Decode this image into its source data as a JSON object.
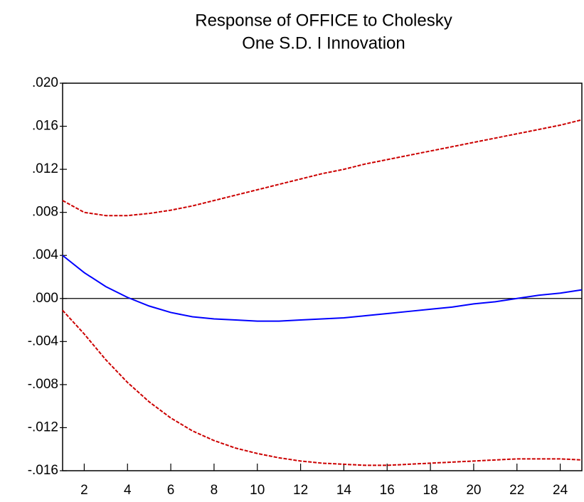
{
  "chart_data": {
    "type": "line",
    "title": [
      "Response of OFFICE to Cholesky",
      "One S.D. I Innovation"
    ],
    "x": [
      1,
      2,
      3,
      4,
      5,
      6,
      7,
      8,
      9,
      10,
      11,
      12,
      13,
      14,
      15,
      16,
      17,
      18,
      19,
      20,
      21,
      22,
      23,
      24,
      25
    ],
    "series": [
      {
        "color": "#0000ff",
        "dashed": false,
        "values": [
          0.004,
          0.0024,
          0.0011,
          0.0001,
          -0.0007,
          -0.0013,
          -0.0017,
          -0.0019,
          -0.002,
          -0.0021,
          -0.0021,
          -0.002,
          -0.0019,
          -0.0018,
          -0.0016,
          -0.0014,
          -0.0012,
          -0.001,
          -0.0008,
          -0.0005,
          -0.0003,
          0.0,
          0.0003,
          0.0005,
          0.0008
        ]
      },
      {
        "color": "#cc0000",
        "dashed": true,
        "values": [
          0.0091,
          0.008,
          0.0077,
          0.0077,
          0.0079,
          0.0082,
          0.0086,
          0.0091,
          0.0096,
          0.0101,
          0.0106,
          0.0111,
          0.0116,
          0.012,
          0.0125,
          0.0129,
          0.0133,
          0.0137,
          0.0141,
          0.0145,
          0.0149,
          0.0153,
          0.0157,
          0.0161,
          0.0166
        ]
      },
      {
        "color": "#cc0000",
        "dashed": true,
        "values": [
          -0.0011,
          -0.0033,
          -0.0057,
          -0.0078,
          -0.0096,
          -0.0111,
          -0.0123,
          -0.0132,
          -0.0139,
          -0.0144,
          -0.0148,
          -0.0151,
          -0.0153,
          -0.0154,
          -0.0155,
          -0.0155,
          -0.0154,
          -0.0153,
          -0.0152,
          -0.0151,
          -0.015,
          -0.0149,
          -0.0149,
          -0.0149,
          -0.015
        ]
      }
    ],
    "xlim": [
      1,
      25
    ],
    "xticks": [
      2,
      4,
      6,
      8,
      10,
      12,
      14,
      16,
      18,
      20,
      22,
      24
    ],
    "ylim": [
      -0.016,
      0.02
    ],
    "yticks": [
      {
        "value": 0.02,
        "label": ".020"
      },
      {
        "value": 0.016,
        "label": ".016"
      },
      {
        "value": 0.012,
        "label": ".012"
      },
      {
        "value": 0.008,
        "label": ".008"
      },
      {
        "value": 0.004,
        "label": ".004"
      },
      {
        "value": 0.0,
        "label": ".000"
      },
      {
        "value": -0.004,
        "label": "-.004"
      },
      {
        "value": -0.008,
        "label": "-.008"
      },
      {
        "value": -0.012,
        "label": "-.012"
      },
      {
        "value": -0.016,
        "label": "-.016"
      }
    ],
    "zero_line": true,
    "grid": false
  }
}
